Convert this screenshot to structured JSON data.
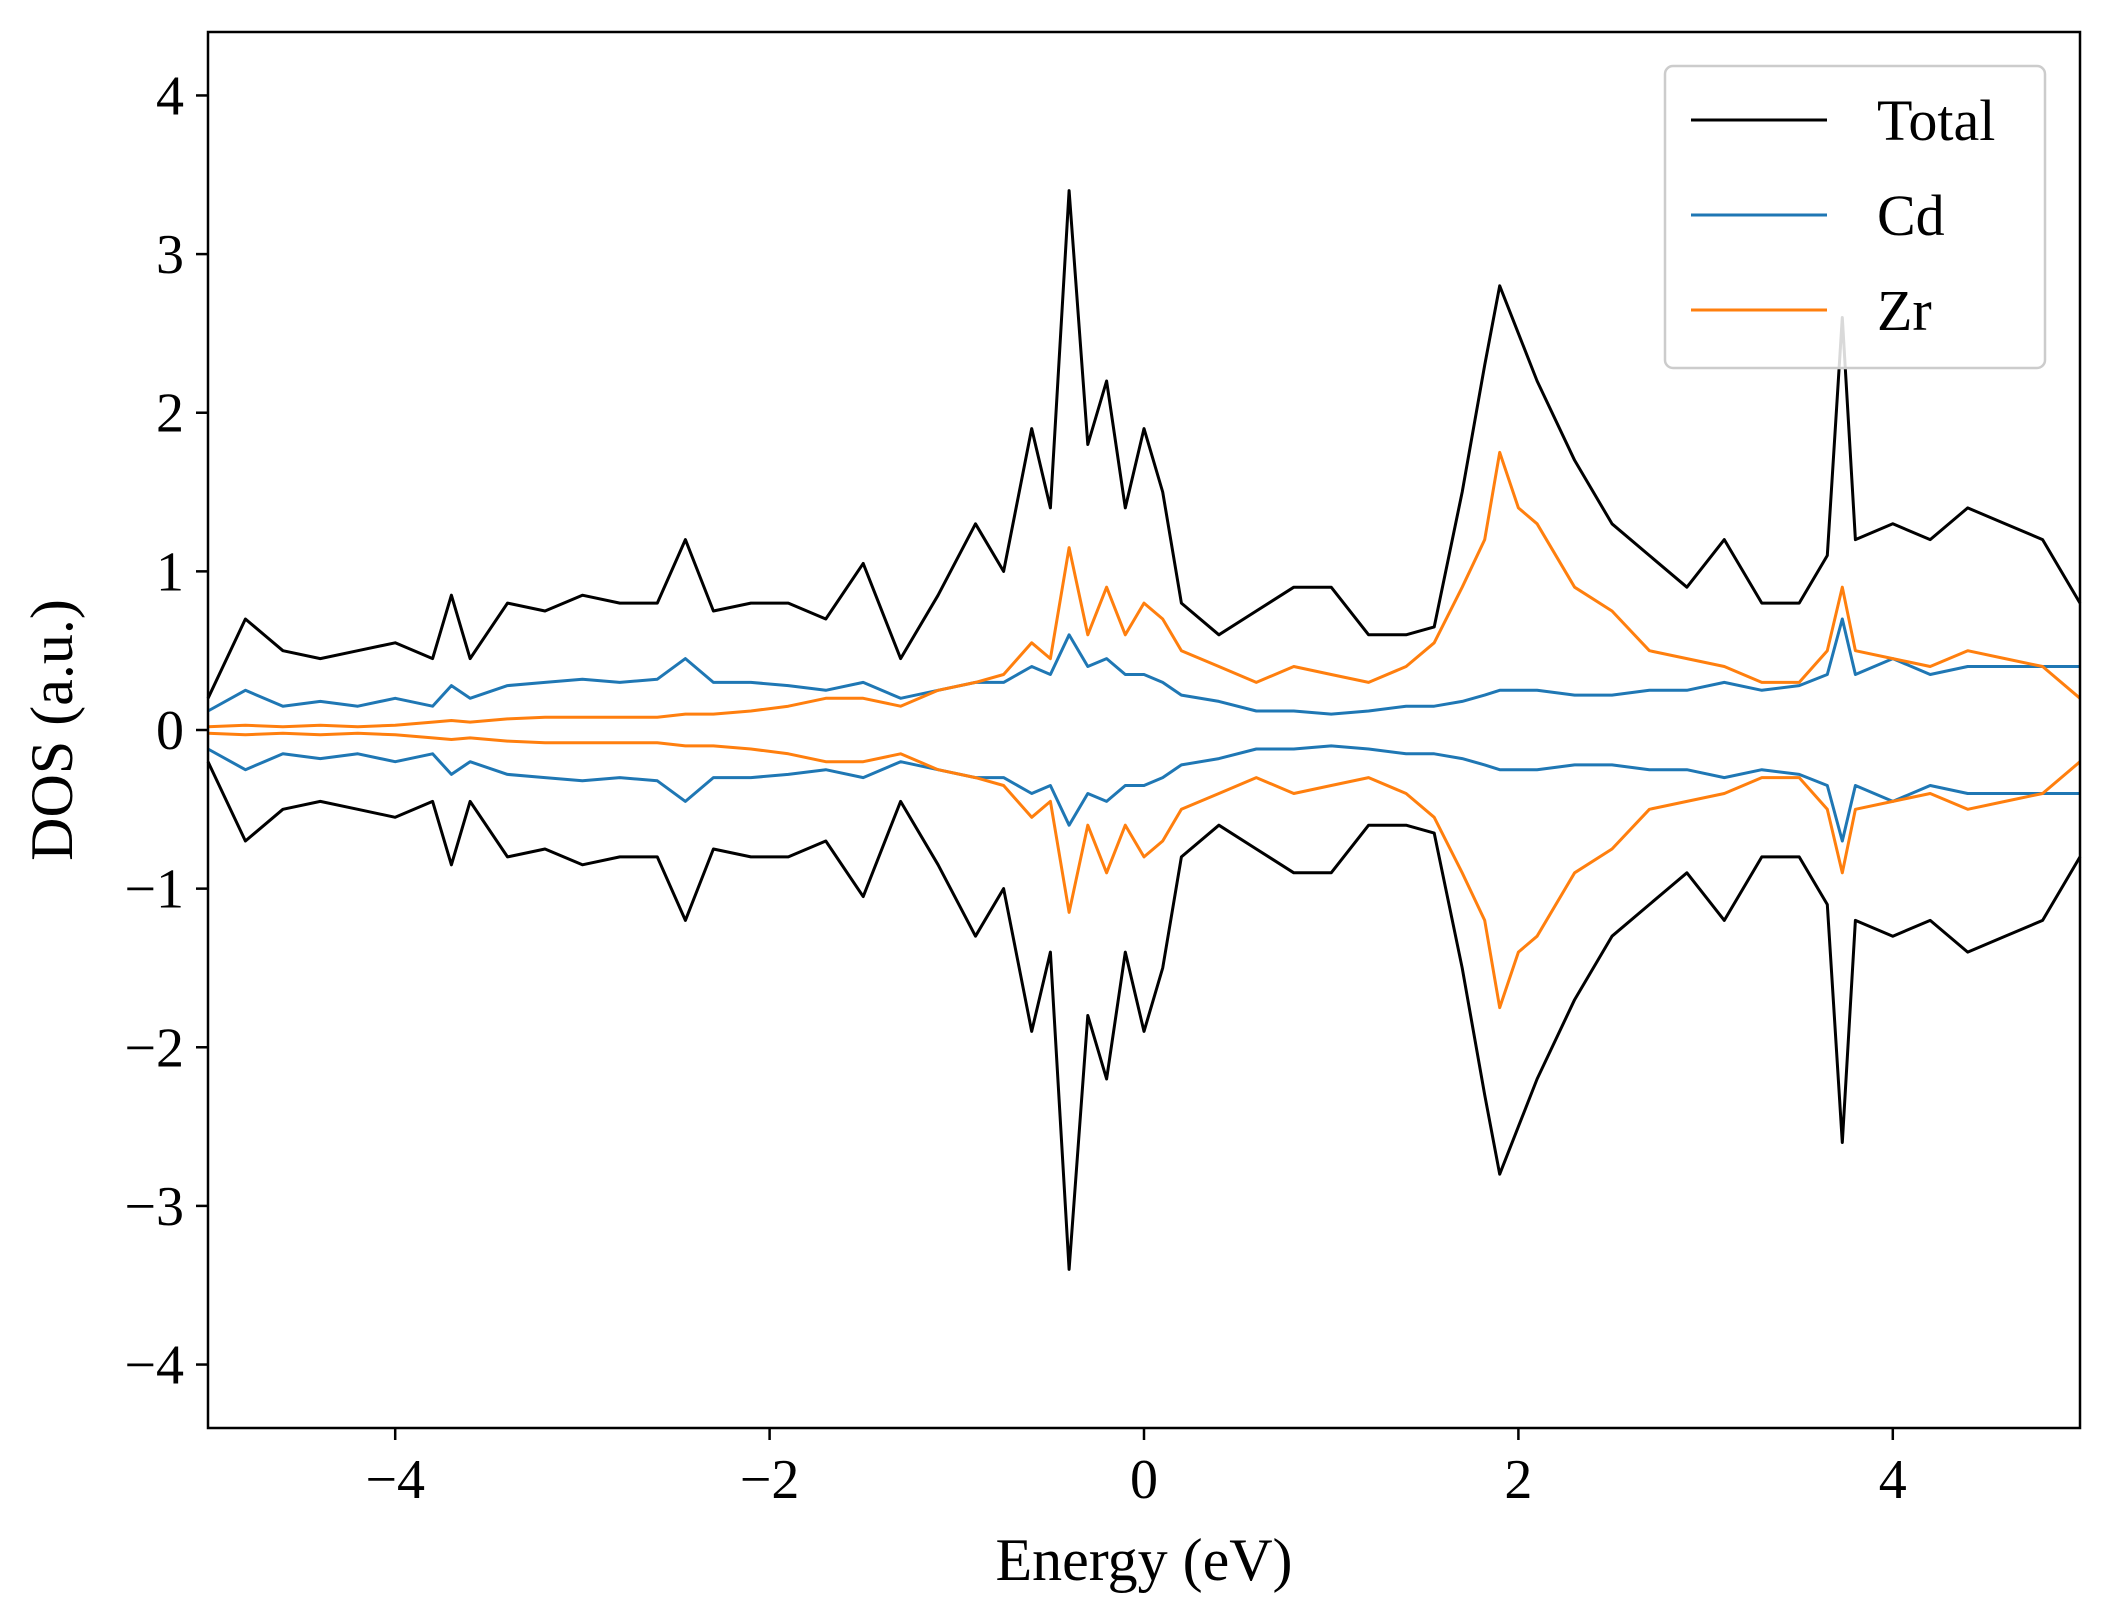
{
  "chart_data": {
    "type": "line",
    "xlabel": "Energy (eV)",
    "ylabel": "DOS (a.u.)",
    "xlim": [
      -5,
      5
    ],
    "ylim": [
      -4.4,
      4.4
    ],
    "xticks": [
      -4,
      -2,
      0,
      2,
      4
    ],
    "xtick_labels": [
      "−4",
      "−2",
      "0",
      "2",
      "4"
    ],
    "yticks": [
      -4,
      -3,
      -2,
      -1,
      0,
      1,
      2,
      3,
      4
    ],
    "ytick_labels": [
      "−4",
      "−3",
      "−2",
      "−1",
      "0",
      "1",
      "2",
      "3",
      "4"
    ],
    "grid": false,
    "legend_position": "top-right",
    "spin_resolved": true,
    "x": [
      -5.0,
      -4.8,
      -4.6,
      -4.4,
      -4.2,
      -4.0,
      -3.8,
      -3.7,
      -3.6,
      -3.4,
      -3.2,
      -3.0,
      -2.8,
      -2.6,
      -2.45,
      -2.3,
      -2.1,
      -1.9,
      -1.7,
      -1.5,
      -1.3,
      -1.1,
      -0.9,
      -0.75,
      -0.6,
      -0.5,
      -0.4,
      -0.3,
      -0.2,
      -0.1,
      0.0,
      0.1,
      0.2,
      0.4,
      0.6,
      0.8,
      1.0,
      1.2,
      1.4,
      1.55,
      1.7,
      1.82,
      1.9,
      2.0,
      2.1,
      2.3,
      2.5,
      2.7,
      2.9,
      3.1,
      3.3,
      3.5,
      3.65,
      3.73,
      3.8,
      4.0,
      4.2,
      4.4,
      4.6,
      4.8,
      5.0
    ],
    "series": [
      {
        "name": "Total",
        "color": "#000000",
        "values": [
          0.2,
          0.7,
          0.5,
          0.45,
          0.5,
          0.55,
          0.45,
          0.85,
          0.45,
          0.8,
          0.75,
          0.85,
          0.8,
          0.8,
          1.2,
          0.75,
          0.8,
          0.8,
          0.7,
          1.05,
          0.45,
          0.85,
          1.3,
          1.0,
          1.9,
          1.4,
          3.4,
          1.8,
          2.2,
          1.4,
          1.9,
          1.5,
          0.8,
          0.6,
          0.75,
          0.9,
          0.9,
          0.6,
          0.6,
          0.65,
          1.5,
          2.3,
          2.8,
          2.5,
          2.2,
          1.7,
          1.3,
          1.1,
          0.9,
          1.2,
          0.8,
          0.8,
          1.1,
          2.6,
          1.2,
          1.3,
          1.2,
          1.4,
          1.3,
          1.2,
          0.8
        ]
      },
      {
        "name": "Cd",
        "color": "#1f77b4",
        "values": [
          0.12,
          0.25,
          0.15,
          0.18,
          0.15,
          0.2,
          0.15,
          0.28,
          0.2,
          0.28,
          0.3,
          0.32,
          0.3,
          0.32,
          0.45,
          0.3,
          0.3,
          0.28,
          0.25,
          0.3,
          0.2,
          0.25,
          0.3,
          0.3,
          0.4,
          0.35,
          0.6,
          0.4,
          0.45,
          0.35,
          0.35,
          0.3,
          0.22,
          0.18,
          0.12,
          0.12,
          0.1,
          0.12,
          0.15,
          0.15,
          0.18,
          0.22,
          0.25,
          0.25,
          0.25,
          0.22,
          0.22,
          0.25,
          0.25,
          0.3,
          0.25,
          0.28,
          0.35,
          0.7,
          0.35,
          0.45,
          0.35,
          0.4,
          0.4,
          0.4,
          0.4
        ]
      },
      {
        "name": "Zr",
        "color": "#ff7f0e",
        "values": [
          0.02,
          0.03,
          0.02,
          0.03,
          0.02,
          0.03,
          0.05,
          0.06,
          0.05,
          0.07,
          0.08,
          0.08,
          0.08,
          0.08,
          0.1,
          0.1,
          0.12,
          0.15,
          0.2,
          0.2,
          0.15,
          0.25,
          0.3,
          0.35,
          0.55,
          0.45,
          1.15,
          0.6,
          0.9,
          0.6,
          0.8,
          0.7,
          0.5,
          0.4,
          0.3,
          0.4,
          0.35,
          0.3,
          0.4,
          0.55,
          0.9,
          1.2,
          1.75,
          1.4,
          1.3,
          0.9,
          0.75,
          0.5,
          0.45,
          0.4,
          0.3,
          0.3,
          0.5,
          0.9,
          0.5,
          0.45,
          0.4,
          0.5,
          0.45,
          0.4,
          0.2
        ]
      }
    ]
  }
}
